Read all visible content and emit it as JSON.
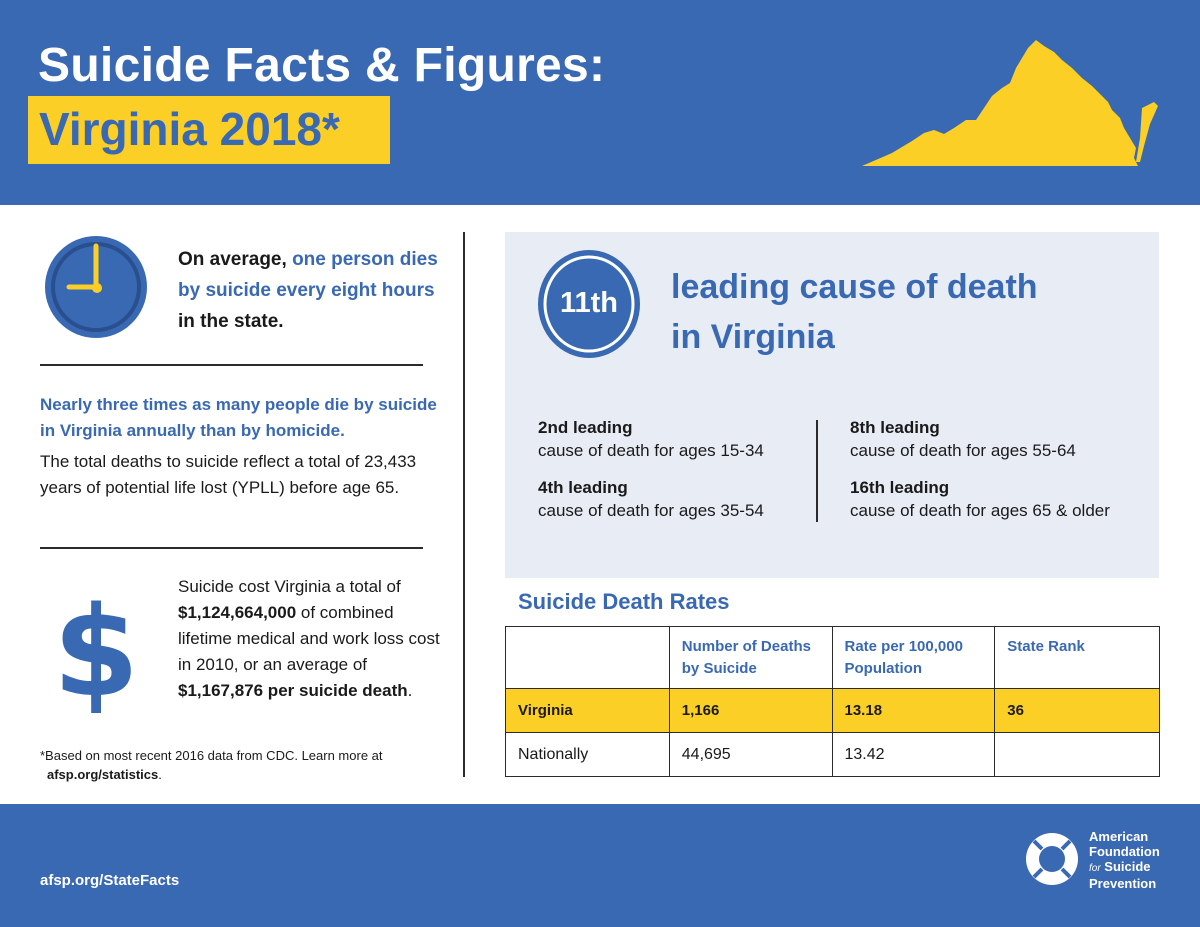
{
  "header": {
    "title": "Suicide Facts & Figures:",
    "subtitle": "Virginia 2018*",
    "map_icon": "virginia-state-map-icon",
    "colors": {
      "blue": "#3a69b3",
      "yellow": "#fccf27"
    }
  },
  "left": {
    "clock_icon": "clock-icon",
    "stat_intro": "On average,",
    "stat_highlight": "one person dies by suicide every eight hours",
    "stat_outro": "in the state.",
    "homicide_text": "Nearly three times as many people die by suicide in Virginia annually than by homicide.",
    "yll_text": "The total deaths to suicide reflect a total of 23,433 years of potential life lost (YPLL) before age 65.",
    "dollar_icon": "dollar-sign-icon",
    "cost_1": "Suicide cost Virginia a total of",
    "cost_total": "$1,124,664,000",
    "cost_2": "of combined lifetime medical and work loss cost in 2010, or an average of",
    "cost_avg": "$1,167,876 per suicide death",
    "cost_end": ".",
    "footnote_text": "*Based on most recent 2016 data from CDC. Learn more at",
    "footnote_link": "afsp.org/statistics",
    "footnote_end": "."
  },
  "panel": {
    "rank": "11th",
    "leading_line1": "leading cause of death",
    "leading_line2": "in Virginia",
    "age_ranks": [
      {
        "rank": "2nd leading",
        "desc": "cause of death for ages 15-34"
      },
      {
        "rank": "4th leading",
        "desc": "cause of death for ages 35-54"
      },
      {
        "rank": "8th leading",
        "desc": "cause of death for ages 55-64"
      },
      {
        "rank": "16th leading",
        "desc": "cause of death for ages 65 & older"
      }
    ]
  },
  "rates": {
    "title": "Suicide Death Rates",
    "headers": [
      "",
      "Number of Deaths by Suicide",
      "Rate per 100,000 Population",
      "State Rank"
    ],
    "rows": [
      {
        "label": "Virginia",
        "deaths": "1,166",
        "rate": "13.18",
        "rank": "36"
      },
      {
        "label": "Nationally",
        "deaths": "44,695",
        "rate": "13.42",
        "rank": ""
      }
    ]
  },
  "footer": {
    "link": "afsp.org/StateFacts",
    "logo_icon": "lifebuoy-logo-icon",
    "org_line1": "American",
    "org_line2": "Foundation",
    "org_for": "for",
    "org_line3": "Suicide",
    "org_line4": "Prevention"
  }
}
